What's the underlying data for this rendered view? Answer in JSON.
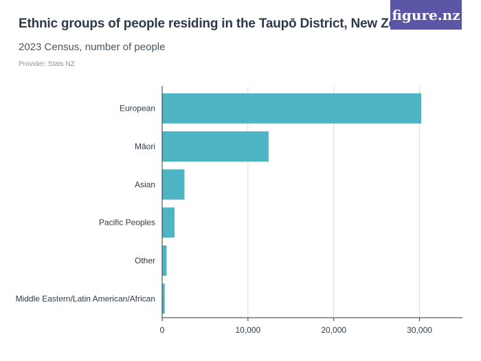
{
  "header": {
    "title": "Ethnic groups of people residing in the Taupō District, New Zealand",
    "subtitle": "2023 Census, number of people",
    "provider": "Provider: Stats NZ"
  },
  "logo": {
    "text": "figure.nz"
  },
  "colors": {
    "bar": "#4fb5c4",
    "grid": "#dcdcdc",
    "axis": "#333333",
    "logo_bg": "#5b57a6"
  },
  "chart_data": {
    "type": "bar",
    "orientation": "horizontal",
    "categories": [
      "European",
      "Māori",
      "Asian",
      "Pacific Peoples",
      "Other",
      "Middle Eastern/Latin American/African"
    ],
    "values": [
      30200,
      12400,
      2600,
      1450,
      520,
      300
    ],
    "xlim": [
      0,
      35000
    ],
    "xticks": [
      0,
      10000,
      20000,
      30000
    ],
    "xtick_labels": [
      "0",
      "10,000",
      "20,000",
      "30,000"
    ],
    "grid": true
  }
}
